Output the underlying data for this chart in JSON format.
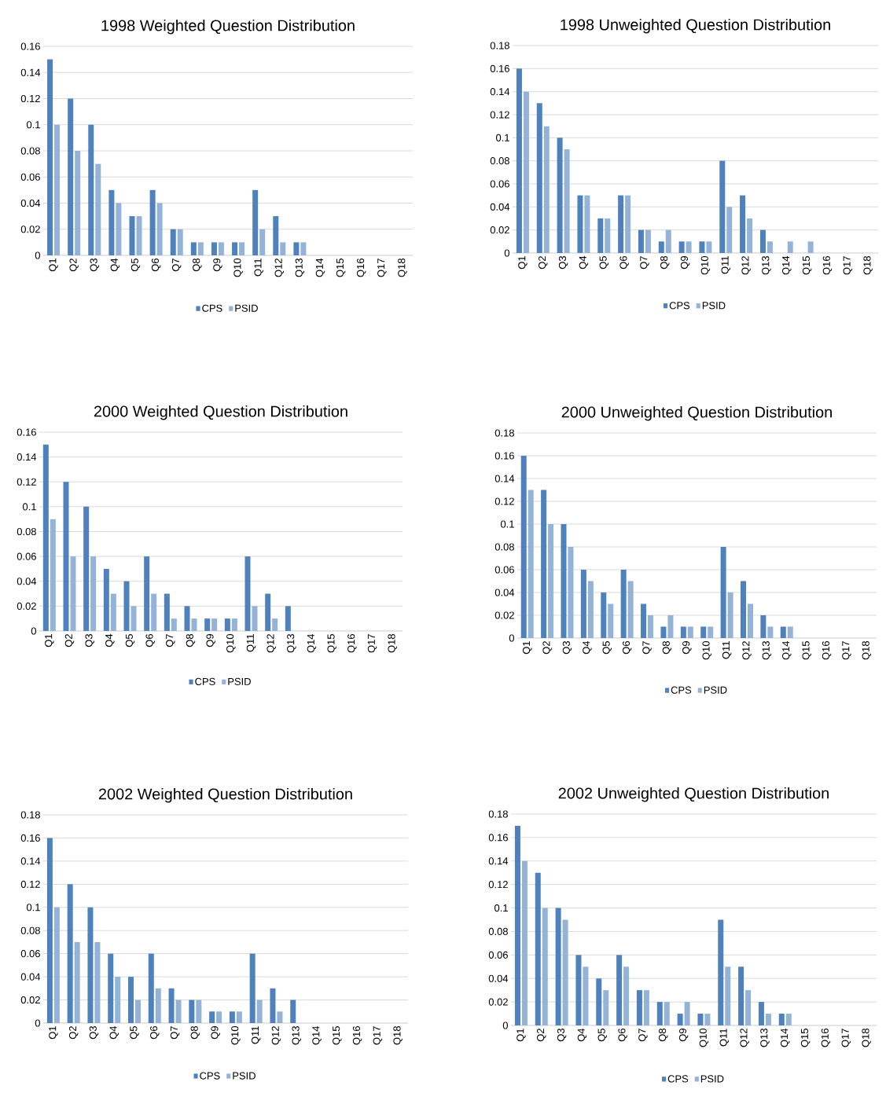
{
  "chart_data": [
    {
      "type": "bar",
      "title": "1998 Weighted Question Distribution",
      "categories": [
        "Q1",
        "Q2",
        "Q3",
        "Q4",
        "Q5",
        "Q6",
        "Q7",
        "Q8",
        "Q9",
        "Q10",
        "Q11",
        "Q12",
        "Q13",
        "Q14",
        "Q15",
        "Q16",
        "Q17",
        "Q18"
      ],
      "series": [
        {
          "name": "CPS",
          "color": "#4f81bd",
          "values": [
            0.15,
            0.12,
            0.1,
            0.05,
            0.03,
            0.05,
            0.02,
            0.01,
            0.01,
            0.01,
            0.05,
            0.03,
            0.01,
            0,
            0,
            0,
            0,
            0
          ]
        },
        {
          "name": "PSID",
          "color": "#95b3d7",
          "values": [
            0.1,
            0.08,
            0.07,
            0.04,
            0.03,
            0.04,
            0.02,
            0.01,
            0.01,
            0.01,
            0.02,
            0.01,
            0.01,
            0,
            0,
            0,
            0,
            0
          ]
        }
      ],
      "ylim": [
        0,
        0.16
      ],
      "yticks": [
        0,
        0.02,
        0.04,
        0.06,
        0.08,
        0.1,
        0.12,
        0.14,
        0.16
      ],
      "grid": "y",
      "legend": "bottom"
    },
    {
      "type": "bar",
      "title": "1998 Unweighted Question Distribution",
      "categories": [
        "Q1",
        "Q2",
        "Q3",
        "Q4",
        "Q5",
        "Q6",
        "Q7",
        "Q8",
        "Q9",
        "Q10",
        "Q11",
        "Q12",
        "Q13",
        "Q14",
        "Q15",
        "Q16",
        "Q17",
        "Q18"
      ],
      "series": [
        {
          "name": "CPS",
          "color": "#4f81bd",
          "values": [
            0.16,
            0.13,
            0.1,
            0.05,
            0.03,
            0.05,
            0.02,
            0.01,
            0.01,
            0.01,
            0.08,
            0.05,
            0.02,
            0,
            0,
            0,
            0,
            0
          ]
        },
        {
          "name": "PSID",
          "color": "#95b3d7",
          "values": [
            0.14,
            0.11,
            0.09,
            0.05,
            0.03,
            0.05,
            0.02,
            0.02,
            0.01,
            0.01,
            0.04,
            0.03,
            0.01,
            0.01,
            0.01,
            0,
            0,
            0
          ]
        }
      ],
      "ylim": [
        0,
        0.18
      ],
      "yticks": [
        0,
        0.02,
        0.04,
        0.06,
        0.08,
        0.1,
        0.12,
        0.14,
        0.16,
        0.18
      ],
      "grid": "y",
      "legend": "bottom"
    },
    {
      "type": "bar",
      "title": "2000 Weighted Question Distribution",
      "categories": [
        "Q1",
        "Q2",
        "Q3",
        "Q4",
        "Q5",
        "Q6",
        "Q7",
        "Q8",
        "Q9",
        "Q10",
        "Q11",
        "Q12",
        "Q13",
        "Q14",
        "Q15",
        "Q16",
        "Q17",
        "Q18"
      ],
      "series": [
        {
          "name": "CPS",
          "color": "#4f81bd",
          "values": [
            0.15,
            0.12,
            0.1,
            0.05,
            0.04,
            0.06,
            0.03,
            0.02,
            0.01,
            0.01,
            0.06,
            0.03,
            0.02,
            0,
            0,
            0,
            0,
            0
          ]
        },
        {
          "name": "PSID",
          "color": "#95b3d7",
          "values": [
            0.09,
            0.06,
            0.06,
            0.03,
            0.02,
            0.03,
            0.01,
            0.01,
            0.01,
            0.01,
            0.02,
            0.01,
            0,
            0,
            0,
            0,
            0,
            0
          ]
        }
      ],
      "ylim": [
        0,
        0.16
      ],
      "yticks": [
        0,
        0.02,
        0.04,
        0.06,
        0.08,
        0.1,
        0.12,
        0.14,
        0.16
      ],
      "grid": "y",
      "legend": "bottom"
    },
    {
      "type": "bar",
      "title": "2000 Unweighted Question Distribution",
      "categories": [
        "Q1",
        "Q2",
        "Q3",
        "Q4",
        "Q5",
        "Q6",
        "Q7",
        "Q8",
        "Q9",
        "Q10",
        "Q11",
        "Q12",
        "Q13",
        "Q14",
        "Q15",
        "Q16",
        "Q17",
        "Q18"
      ],
      "series": [
        {
          "name": "CPS",
          "color": "#4f81bd",
          "values": [
            0.16,
            0.13,
            0.1,
            0.06,
            0.04,
            0.06,
            0.03,
            0.01,
            0.01,
            0.01,
            0.08,
            0.05,
            0.02,
            0.01,
            0,
            0,
            0,
            0
          ]
        },
        {
          "name": "PSID",
          "color": "#95b3d7",
          "values": [
            0.13,
            0.1,
            0.08,
            0.05,
            0.03,
            0.05,
            0.02,
            0.02,
            0.01,
            0.01,
            0.04,
            0.03,
            0.01,
            0.01,
            0,
            0,
            0,
            0
          ]
        }
      ],
      "ylim": [
        0,
        0.18
      ],
      "yticks": [
        0,
        0.02,
        0.04,
        0.06,
        0.08,
        0.1,
        0.12,
        0.14,
        0.16,
        0.18
      ],
      "grid": "y",
      "legend": "bottom"
    },
    {
      "type": "bar",
      "title": "2002 Weighted Question Distribution",
      "categories": [
        "Q1",
        "Q2",
        "Q3",
        "Q4",
        "Q5",
        "Q6",
        "Q7",
        "Q8",
        "Q9",
        "Q10",
        "Q11",
        "Q12",
        "Q13",
        "Q14",
        "Q15",
        "Q16",
        "Q17",
        "Q18"
      ],
      "series": [
        {
          "name": "CPS",
          "color": "#4f81bd",
          "values": [
            0.16,
            0.12,
            0.1,
            0.06,
            0.04,
            0.06,
            0.03,
            0.02,
            0.01,
            0.01,
            0.06,
            0.03,
            0.02,
            0,
            0,
            0,
            0,
            0
          ]
        },
        {
          "name": "PSID",
          "color": "#95b3d7",
          "values": [
            0.1,
            0.07,
            0.07,
            0.04,
            0.02,
            0.03,
            0.02,
            0.02,
            0.01,
            0.01,
            0.02,
            0.01,
            0,
            0,
            0,
            0,
            0,
            0
          ]
        }
      ],
      "ylim": [
        0,
        0.18
      ],
      "yticks": [
        0,
        0.02,
        0.04,
        0.06,
        0.08,
        0.1,
        0.12,
        0.14,
        0.16,
        0.18
      ],
      "grid": "y",
      "legend": "bottom"
    },
    {
      "type": "bar",
      "title": "2002 Unweighted Question Distribution",
      "categories": [
        "Q1",
        "Q2",
        "Q3",
        "Q4",
        "Q5",
        "Q6",
        "Q7",
        "Q8",
        "Q9",
        "Q10",
        "Q11",
        "Q12",
        "Q13",
        "Q14",
        "Q15",
        "Q16",
        "Q17",
        "Q18"
      ],
      "series": [
        {
          "name": "CPS",
          "color": "#4f81bd",
          "values": [
            0.17,
            0.13,
            0.1,
            0.06,
            0.04,
            0.06,
            0.03,
            0.02,
            0.01,
            0.01,
            0.09,
            0.05,
            0.02,
            0.01,
            0,
            0,
            0,
            0
          ]
        },
        {
          "name": "PSID",
          "color": "#95b3d7",
          "values": [
            0.14,
            0.1,
            0.09,
            0.05,
            0.03,
            0.05,
            0.03,
            0.02,
            0.02,
            0.01,
            0.05,
            0.03,
            0.01,
            0.01,
            0,
            0,
            0,
            0
          ]
        }
      ],
      "ylim": [
        0,
        0.18
      ],
      "yticks": [
        0,
        0.02,
        0.04,
        0.06,
        0.08,
        0.1,
        0.12,
        0.14,
        0.16,
        0.18
      ],
      "grid": "y",
      "legend": "bottom"
    }
  ]
}
